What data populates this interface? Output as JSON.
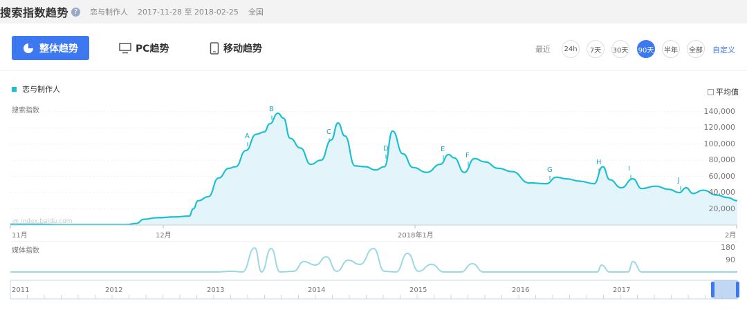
{
  "header": {
    "title": "搜索指数趋势",
    "help": "?",
    "keyword": "恋与制作人",
    "date_range": "2017-11-28 至 2018-02-25",
    "region": "全国"
  },
  "tabs": {
    "overall": "整体趋势",
    "pc": "PC趋势",
    "mobile": "移动趋势"
  },
  "range": {
    "label": "最近",
    "options": [
      "24h",
      "7天",
      "30天",
      "90天",
      "半年",
      "全部"
    ],
    "active": "90天",
    "custom": "自定义"
  },
  "legend": {
    "series": "恋与制作人",
    "color": "#1cc0d0"
  },
  "average_label": "平均值",
  "search_chart": {
    "ylabel": "搜索指数",
    "yticks": [
      "140,000",
      "120,000",
      "100,000",
      "80,000",
      "60,000",
      "40,000",
      "20,000"
    ],
    "xticks": [
      "11月",
      "12月",
      "2018年1月",
      "2月"
    ],
    "watermark": "@ index.baidu.com",
    "markers": [
      "A",
      "B",
      "C",
      "D",
      "E",
      "F",
      "G",
      "H",
      "I",
      "J"
    ]
  },
  "media_chart": {
    "ylabel": "媒体指数",
    "yticks": [
      "180",
      "90"
    ]
  },
  "brush": {
    "years": [
      "2011",
      "2012",
      "2013",
      "2014",
      "2015",
      "2016",
      "2017"
    ]
  },
  "chart_data": [
    {
      "type": "area",
      "ylabel": "搜索指数",
      "ylim": [
        0,
        150000
      ],
      "x_ticks": [
        "11月",
        "12月",
        "2018年1月",
        "2月"
      ],
      "series": [
        {
          "name": "恋与制作人",
          "points": [
            [
              0,
              1000
            ],
            [
              45,
              1000
            ],
            [
              70,
              500
            ],
            [
              170,
              500
            ],
            [
              185,
              2000
            ],
            [
              195,
              7000
            ],
            [
              215,
              9000
            ],
            [
              240,
              10000
            ],
            [
              262,
              11000
            ],
            [
              268,
              20000
            ],
            [
              275,
              30000
            ],
            [
              290,
              35000
            ],
            [
              305,
              58000
            ],
            [
              320,
              70000
            ],
            [
              330,
              72000
            ],
            [
              345,
              92000
            ],
            [
              360,
              112000
            ],
            [
              372,
              115000
            ],
            [
              380,
              125000
            ],
            [
              392,
              138000
            ],
            [
              400,
              132000
            ],
            [
              410,
              107000
            ],
            [
              425,
              95000
            ],
            [
              440,
              75000
            ],
            [
              455,
              80000
            ],
            [
              470,
              105000
            ],
            [
              480,
              126000
            ],
            [
              490,
              110000
            ],
            [
              505,
              73000
            ],
            [
              520,
              72000
            ],
            [
              535,
              68000
            ],
            [
              548,
              72000
            ],
            [
              560,
              116000
            ],
            [
              575,
              88000
            ],
            [
              590,
              71000
            ],
            [
              610,
              65000
            ],
            [
              630,
              75000
            ],
            [
              642,
              87000
            ],
            [
              650,
              83000
            ],
            [
              665,
              65000
            ],
            [
              680,
              82000
            ],
            [
              695,
              78000
            ],
            [
              715,
              70000
            ],
            [
              735,
              66000
            ],
            [
              760,
              52000
            ],
            [
              785,
              51000
            ],
            [
              800,
              59000
            ],
            [
              815,
              57000
            ],
            [
              835,
              54000
            ],
            [
              855,
              51000
            ],
            [
              868,
              72000
            ],
            [
              878,
              56000
            ],
            [
              895,
              46000
            ],
            [
              912,
              57000
            ],
            [
              925,
              45000
            ],
            [
              945,
              48000
            ],
            [
              965,
              44000
            ],
            [
              980,
              40000
            ],
            [
              990,
              46000
            ],
            [
              1000,
              39000
            ],
            [
              1015,
              43000
            ],
            [
              1035,
              37000
            ],
            [
              1050,
              34000
            ],
            [
              1065,
              30000
            ]
          ]
        }
      ],
      "annotations": [
        "A",
        "B",
        "C",
        "D",
        "E",
        "F",
        "G",
        "H",
        "I",
        "J"
      ]
    },
    {
      "type": "line",
      "ylabel": "媒体指数",
      "ylim": [
        0,
        200
      ],
      "series": [
        {
          "name": "恋与制作人",
          "points": [
            [
              0,
              5
            ],
            [
              300,
              5
            ],
            [
              325,
              10
            ],
            [
              340,
              5
            ],
            [
              358,
              180
            ],
            [
              368,
              5
            ],
            [
              382,
              175
            ],
            [
              395,
              5
            ],
            [
              415,
              10
            ],
            [
              430,
              80
            ],
            [
              447,
              55
            ],
            [
              463,
              115
            ],
            [
              478,
              10
            ],
            [
              495,
              90
            ],
            [
              512,
              60
            ],
            [
              532,
              175
            ],
            [
              548,
              10
            ],
            [
              565,
              5
            ],
            [
              582,
              140
            ],
            [
              598,
              10
            ],
            [
              617,
              60
            ],
            [
              635,
              5
            ],
            [
              660,
              5
            ],
            [
              677,
              65
            ],
            [
              693,
              5
            ],
            [
              860,
              5
            ],
            [
              866,
              55
            ],
            [
              878,
              5
            ],
            [
              905,
              5
            ],
            [
              912,
              80
            ],
            [
              925,
              5
            ],
            [
              1065,
              5
            ]
          ]
        }
      ]
    }
  ]
}
